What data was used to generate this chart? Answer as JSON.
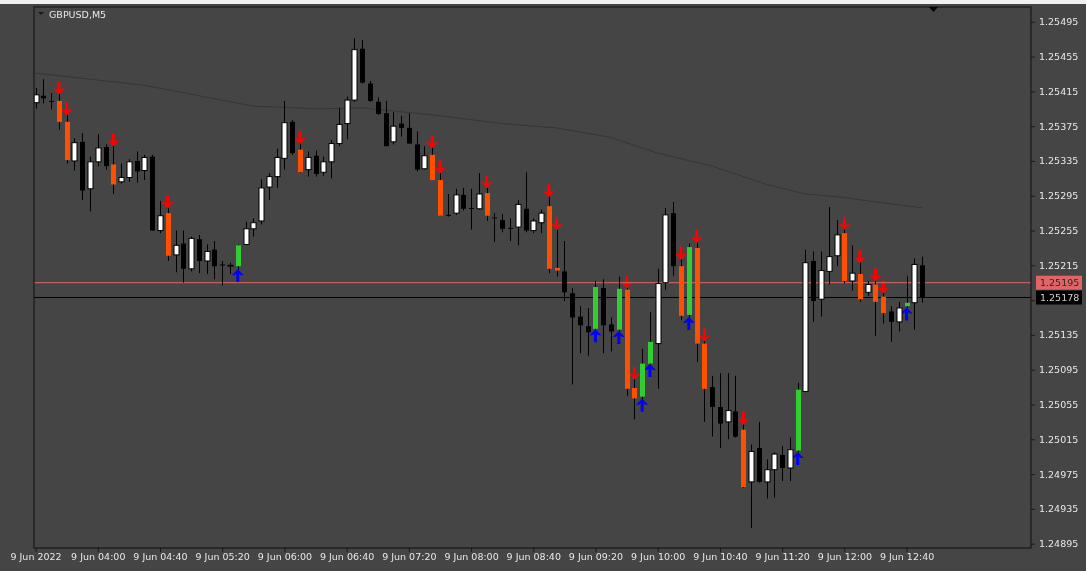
{
  "chart_data": {
    "type": "candlestick",
    "title": "GBPUSD,M5",
    "x": [
      "2022-06-09T03:20",
      "2022-06-09T03:25",
      "2022-06-09T03:30",
      "2022-06-09T03:35",
      "2022-06-09T03:40",
      "2022-06-09T03:45",
      "2022-06-09T03:50",
      "2022-06-09T03:55",
      "2022-06-09T04:00",
      "2022-06-09T04:05",
      "2022-06-09T04:10",
      "2022-06-09T04:15",
      "2022-06-09T04:20",
      "2022-06-09T04:25",
      "2022-06-09T04:30",
      "2022-06-09T04:35",
      "2022-06-09T04:40",
      "2022-06-09T04:45",
      "2022-06-09T04:50",
      "2022-06-09T04:55",
      "2022-06-09T05:00",
      "2022-06-09T05:05",
      "2022-06-09T05:10",
      "2022-06-09T05:15",
      "2022-06-09T05:20",
      "2022-06-09T05:25",
      "2022-06-09T05:30",
      "2022-06-09T05:35",
      "2022-06-09T05:40",
      "2022-06-09T05:45",
      "2022-06-09T05:50",
      "2022-06-09T05:55",
      "2022-06-09T06:00",
      "2022-06-09T06:05",
      "2022-06-09T06:10",
      "2022-06-09T06:15",
      "2022-06-09T06:20",
      "2022-06-09T06:25",
      "2022-06-09T06:30",
      "2022-06-09T06:35",
      "2022-06-09T06:40",
      "2022-06-09T06:45",
      "2022-06-09T06:50",
      "2022-06-09T06:55",
      "2022-06-09T07:00",
      "2022-06-09T07:05",
      "2022-06-09T07:10",
      "2022-06-09T07:15",
      "2022-06-09T07:20",
      "2022-06-09T07:25",
      "2022-06-09T07:30",
      "2022-06-09T07:35",
      "2022-06-09T07:40",
      "2022-06-09T07:45",
      "2022-06-09T07:50",
      "2022-06-09T07:55",
      "2022-06-09T08:00",
      "2022-06-09T08:05",
      "2022-06-09T08:10",
      "2022-06-09T08:15",
      "2022-06-09T08:20",
      "2022-06-09T08:25",
      "2022-06-09T08:30",
      "2022-06-09T08:35",
      "2022-06-09T08:40",
      "2022-06-09T08:45",
      "2022-06-09T08:50",
      "2022-06-09T08:55",
      "2022-06-09T09:00",
      "2022-06-09T09:05",
      "2022-06-09T09:10",
      "2022-06-09T09:15",
      "2022-06-09T09:20",
      "2022-06-09T09:25",
      "2022-06-09T09:30",
      "2022-06-09T09:35",
      "2022-06-09T09:40",
      "2022-06-09T09:45",
      "2022-06-09T09:50",
      "2022-06-09T09:55",
      "2022-06-09T10:00",
      "2022-06-09T10:05",
      "2022-06-09T10:10",
      "2022-06-09T10:15",
      "2022-06-09T10:20",
      "2022-06-09T10:25",
      "2022-06-09T10:30",
      "2022-06-09T10:35",
      "2022-06-09T10:40",
      "2022-06-09T10:45",
      "2022-06-09T10:50",
      "2022-06-09T10:55",
      "2022-06-09T11:00",
      "2022-06-09T11:05",
      "2022-06-09T11:10",
      "2022-06-09T11:15",
      "2022-06-09T11:20",
      "2022-06-09T11:25",
      "2022-06-09T11:30",
      "2022-06-09T11:35",
      "2022-06-09T11:40",
      "2022-06-09T11:45",
      "2022-06-09T11:50",
      "2022-06-09T11:55",
      "2022-06-09T12:00",
      "2022-06-09T12:05",
      "2022-06-09T12:10",
      "2022-06-09T12:15",
      "2022-06-09T12:20",
      "2022-06-09T12:25",
      "2022-06-09T12:30",
      "2022-06-09T12:35",
      "2022-06-09T12:40",
      "2022-06-09T12:45",
      "2022-06-09T12:50"
    ],
    "ohlc": [
      [
        1.25402,
        1.25419,
        1.25395,
        1.25411
      ],
      [
        1.2541,
        1.25429,
        1.25401,
        1.25407
      ],
      [
        1.25404,
        1.25413,
        1.25394,
        1.25403
      ],
      [
        1.25404,
        1.25412,
        1.25371,
        1.2538
      ],
      [
        1.2538,
        1.25388,
        1.25332,
        1.25336
      ],
      [
        1.25335,
        1.25361,
        1.25324,
        1.25356
      ],
      [
        1.25357,
        1.25367,
        1.2529,
        1.25301
      ],
      [
        1.25303,
        1.2534,
        1.25277,
        1.25334
      ],
      [
        1.25334,
        1.25366,
        1.25329,
        1.2535
      ],
      [
        1.25351,
        1.25354,
        1.25325,
        1.25329
      ],
      [
        1.25331,
        1.25352,
        1.25297,
        1.25308
      ],
      [
        1.25311,
        1.25332,
        1.25309,
        1.25316
      ],
      [
        1.25316,
        1.25337,
        1.25311,
        1.25334
      ],
      [
        1.25335,
        1.25346,
        1.2531,
        1.25323
      ],
      [
        1.25324,
        1.25342,
        1.25313,
        1.25339
      ],
      [
        1.2534,
        1.25342,
        1.25255,
        1.25255
      ],
      [
        1.25255,
        1.25289,
        1.25252,
        1.25272
      ],
      [
        1.25275,
        1.25281,
        1.2522,
        1.25226
      ],
      [
        1.25227,
        1.25255,
        1.25207,
        1.25238
      ],
      [
        1.2524,
        1.25255,
        1.25195,
        1.25211
      ],
      [
        1.25211,
        1.25248,
        1.25208,
        1.25246
      ],
      [
        1.25245,
        1.2525,
        1.25206,
        1.2522
      ],
      [
        1.2522,
        1.25239,
        1.25205,
        1.25231
      ],
      [
        1.25233,
        1.25243,
        1.25199,
        1.25214
      ],
      [
        1.25216,
        1.2522,
        1.25192,
        1.25215
      ],
      [
        1.25214,
        1.25218,
        1.25205,
        1.25215
      ],
      [
        1.25214,
        1.25239,
        1.2521,
        1.25238
      ],
      [
        1.25239,
        1.25265,
        1.25238,
        1.25257
      ],
      [
        1.25257,
        1.25269,
        1.25248,
        1.25264
      ],
      [
        1.25266,
        1.25314,
        1.25262,
        1.25304
      ],
      [
        1.25305,
        1.25321,
        1.2529,
        1.25317
      ],
      [
        1.25317,
        1.25349,
        1.25304,
        1.25339
      ],
      [
        1.25338,
        1.25404,
        1.25325,
        1.25379
      ],
      [
        1.2538,
        1.25382,
        1.25342,
        1.25344
      ],
      [
        1.25348,
        1.25355,
        1.25321,
        1.25322
      ],
      [
        1.25325,
        1.25346,
        1.25317,
        1.25339
      ],
      [
        1.25341,
        1.25347,
        1.25317,
        1.2532
      ],
      [
        1.25322,
        1.2534,
        1.25318,
        1.25334
      ],
      [
        1.25334,
        1.25359,
        1.25315,
        1.25355
      ],
      [
        1.25355,
        1.25396,
        1.25352,
        1.25377
      ],
      [
        1.25378,
        1.25409,
        1.2536,
        1.25405
      ],
      [
        1.25405,
        1.25476,
        1.25403,
        1.25463
      ],
      [
        1.25464,
        1.25474,
        1.25424,
        1.25425
      ],
      [
        1.25424,
        1.25427,
        1.25403,
        1.25404
      ],
      [
        1.25403,
        1.25408,
        1.25388,
        1.25389
      ],
      [
        1.2539,
        1.25404,
        1.25352,
        1.25352
      ],
      [
        1.25357,
        1.25391,
        1.25354,
        1.25375
      ],
      [
        1.25378,
        1.25387,
        1.25363,
        1.25373
      ],
      [
        1.25373,
        1.2539,
        1.25355,
        1.25355
      ],
      [
        1.25354,
        1.25369,
        1.25323,
        1.25325
      ],
      [
        1.25326,
        1.25352,
        1.25325,
        1.25341
      ],
      [
        1.25342,
        1.2535,
        1.25313,
        1.25313
      ],
      [
        1.25313,
        1.25321,
        1.25272,
        1.25272
      ],
      [
        1.25273,
        1.25297,
        1.25271,
        1.25272
      ],
      [
        1.25275,
        1.25303,
        1.25273,
        1.25296
      ],
      [
        1.25296,
        1.25304,
        1.25278,
        1.2528
      ],
      [
        1.25281,
        1.25303,
        1.25256,
        1.2528
      ],
      [
        1.2528,
        1.25321,
        1.25279,
        1.25297
      ],
      [
        1.25298,
        1.25304,
        1.25266,
        1.25272
      ],
      [
        1.2527,
        1.25275,
        1.25242,
        1.25269
      ],
      [
        1.25267,
        1.25274,
        1.25253,
        1.25257
      ],
      [
        1.25258,
        1.25269,
        1.25243,
        1.25257
      ],
      [
        1.25259,
        1.2529,
        1.25238,
        1.25285
      ],
      [
        1.2528,
        1.25322,
        1.25253,
        1.25255
      ],
      [
        1.25255,
        1.25269,
        1.25252,
        1.25266
      ],
      [
        1.25264,
        1.25279,
        1.25252,
        1.25275
      ],
      [
        1.25283,
        1.25294,
        1.25206,
        1.25211
      ],
      [
        1.25212,
        1.25256,
        1.25202,
        1.25209
      ],
      [
        1.25208,
        1.25243,
        1.25174,
        1.25184
      ],
      [
        1.25183,
        1.25189,
        1.25078,
        1.25155
      ],
      [
        1.25156,
        1.25168,
        1.25114,
        1.25146
      ],
      [
        1.25145,
        1.25166,
        1.25111,
        1.25138
      ],
      [
        1.25142,
        1.25197,
        1.25141,
        1.2519
      ],
      [
        1.25189,
        1.25199,
        1.25114,
        1.25146
      ],
      [
        1.25147,
        1.25155,
        1.25116,
        1.25139
      ],
      [
        1.25141,
        1.25202,
        1.25139,
        1.25188
      ],
      [
        1.25187,
        1.25189,
        1.25065,
        1.25073
      ],
      [
        1.25074,
        1.25084,
        1.25038,
        1.25062
      ],
      [
        1.25064,
        1.25119,
        1.25061,
        1.25102
      ],
      [
        1.25102,
        1.25161,
        1.25101,
        1.25127
      ],
      [
        1.25125,
        1.25211,
        1.25073,
        1.25194
      ],
      [
        1.25195,
        1.25281,
        1.25187,
        1.25273
      ],
      [
        1.25275,
        1.25288,
        1.25203,
        1.25214
      ],
      [
        1.25214,
        1.25222,
        1.25152,
        1.25157
      ],
      [
        1.25158,
        1.2524,
        1.25155,
        1.25236
      ],
      [
        1.25235,
        1.25241,
        1.25104,
        1.25125
      ],
      [
        1.25125,
        1.25128,
        1.25035,
        1.25073
      ],
      [
        1.25075,
        1.25088,
        1.25018,
        1.25052
      ],
      [
        1.25052,
        1.25091,
        1.25005,
        1.25033
      ],
      [
        1.25035,
        1.25091,
        1.25015,
        1.25048
      ],
      [
        1.25047,
        1.25088,
        1.25017,
        1.25018
      ],
      [
        1.25026,
        1.25032,
        1.24959,
        1.2496
      ],
      [
        1.24966,
        1.25009,
        1.24913,
        1.25001
      ],
      [
        1.25005,
        1.25035,
        1.24965,
        1.24966
      ],
      [
        1.24966,
        1.24992,
        1.24947,
        1.2498
      ],
      [
        1.2498,
        1.25,
        1.24948,
        1.24998
      ],
      [
        1.24997,
        1.25007,
        1.24967,
        1.24982
      ],
      [
        1.24982,
        1.25017,
        1.24967,
        1.25003
      ],
      [
        1.25002,
        1.2508,
        1.25,
        1.25072
      ],
      [
        1.2507,
        1.25233,
        1.25069,
        1.25218
      ],
      [
        1.2522,
        1.25231,
        1.2515,
        1.25174
      ],
      [
        1.25176,
        1.25231,
        1.25156,
        1.25209
      ],
      [
        1.25208,
        1.25282,
        1.25193,
        1.25225
      ],
      [
        1.25226,
        1.25267,
        1.25214,
        1.2525
      ],
      [
        1.25252,
        1.25256,
        1.25194,
        1.25197
      ],
      [
        1.25197,
        1.25238,
        1.25186,
        1.25206
      ],
      [
        1.25205,
        1.25218,
        1.25173,
        1.25176
      ],
      [
        1.25184,
        1.25197,
        1.2518,
        1.25193
      ],
      [
        1.25193,
        1.25197,
        1.25134,
        1.25173
      ],
      [
        1.25179,
        1.25183,
        1.25148,
        1.2516
      ],
      [
        1.25162,
        1.25168,
        1.25127,
        1.2515
      ],
      [
        1.2515,
        1.25173,
        1.25139,
        1.25166
      ],
      [
        1.25168,
        1.25203,
        1.25166,
        1.25172
      ],
      [
        1.25172,
        1.25223,
        1.25141,
        1.25216
      ],
      [
        1.25215,
        1.25225,
        1.25172,
        1.25178
      ]
    ],
    "colors": [
      "#ffffff",
      "#000000",
      "#000000",
      "#ff5000",
      "#ff5000",
      "#ffffff",
      "#000000",
      "#ffffff",
      "#ffffff",
      "#000000",
      "#ff5000",
      "#ffffff",
      "#ffffff",
      "#000000",
      "#ffffff",
      "#000000",
      "#ffffff",
      "#ff5000",
      "#ffffff",
      "#000000",
      "#ffffff",
      "#000000",
      "#ffffff",
      "#000000",
      "#000000",
      "#ffffff",
      "#32cd32",
      "#ffffff",
      "#ffffff",
      "#ffffff",
      "#ffffff",
      "#ffffff",
      "#ffffff",
      "#000000",
      "#ff5000",
      "#ffffff",
      "#000000",
      "#ffffff",
      "#ffffff",
      "#ffffff",
      "#ffffff",
      "#ffffff",
      "#000000",
      "#000000",
      "#000000",
      "#000000",
      "#ffffff",
      "#000000",
      "#000000",
      "#000000",
      "#ffffff",
      "#ff5000",
      "#ff5000",
      "#000000",
      "#ffffff",
      "#000000",
      "#000000",
      "#ffffff",
      "#ff5000",
      "#000000",
      "#000000",
      "#000000",
      "#ffffff",
      "#000000",
      "#ffffff",
      "#ffffff",
      "#ff5000",
      "#ff5000",
      "#000000",
      "#000000",
      "#000000",
      "#000000",
      "#32cd32",
      "#000000",
      "#000000",
      "#32cd32",
      "#ff5000",
      "#ff5000",
      "#32cd32",
      "#32cd32",
      "#ffffff",
      "#ffffff",
      "#000000",
      "#ff5000",
      "#32cd32",
      "#ff5000",
      "#ff5000",
      "#000000",
      "#000000",
      "#ffffff",
      "#000000",
      "#ff5000",
      "#ffffff",
      "#000000",
      "#ffffff",
      "#ffffff",
      "#000000",
      "#ffffff",
      "#32cd32",
      "#ffffff",
      "#000000",
      "#ffffff",
      "#ffffff",
      "#ffffff",
      "#ff5000",
      "#ffffff",
      "#ff5000",
      "#ffffff",
      "#ff5000",
      "#ff5000",
      "#000000",
      "#ffffff",
      "#32cd32",
      "#ffffff",
      "#000000"
    ],
    "series": [
      {
        "type": "line",
        "color": "#363636",
        "x": [
          "2022-06-09T03:20",
          "2022-06-09T04:30",
          "2022-06-09T05:40",
          "2022-06-09T06:20",
          "2022-06-09T06:50",
          "2022-06-09T07:35",
          "2022-06-09T08:20",
          "2022-06-09T08:55",
          "2022-06-09T09:30",
          "2022-06-09T10:00",
          "2022-06-09T10:35",
          "2022-06-09T11:10",
          "2022-06-09T11:35",
          "2022-06-09T11:55",
          "2022-06-09T12:20",
          "2022-06-09T12:50"
        ],
        "values": [
          1.25436,
          1.25422,
          1.25398,
          1.25395,
          1.25396,
          1.25388,
          1.25378,
          1.25373,
          1.25362,
          1.25344,
          1.25329,
          1.25308,
          1.25297,
          1.25294,
          1.25288,
          1.25281
        ]
      },
      {
        "type": "scatter",
        "color": "#ff0000",
        "x": [
          "2022-06-09T03:35",
          "2022-06-09T03:40",
          "2022-06-09T04:10",
          "2022-06-09T04:45",
          "2022-06-09T06:10",
          "2022-06-09T07:35",
          "2022-06-09T07:40",
          "2022-06-09T08:10",
          "2022-06-09T08:50",
          "2022-06-09T08:55",
          "2022-06-09T09:40",
          "2022-06-09T09:45",
          "2022-06-09T10:15",
          "2022-06-09T10:25",
          "2022-06-09T10:30",
          "2022-06-09T10:55",
          "2022-06-09T12:00",
          "2022-06-09T12:10",
          "2022-06-09T12:20",
          "2022-06-09T12:25"
        ],
        "values": [
          1.25419,
          1.25395,
          1.25359,
          1.25288,
          1.25362,
          1.25357,
          1.25328,
          1.25311,
          1.25301,
          1.25263,
          1.25196,
          1.25091,
          1.25229,
          1.25248,
          1.25135,
          1.25039,
          1.25263,
          1.25225,
          1.25204,
          1.2519
        ]
      },
      {
        "type": "scatter",
        "color": "#0000ff",
        "x": [
          "2022-06-09T05:30",
          "2022-06-09T09:20",
          "2022-06-09T09:35",
          "2022-06-09T09:50",
          "2022-06-09T09:55",
          "2022-06-09T10:20",
          "2022-06-09T11:30",
          "2022-06-09T12:40"
        ],
        "values": [
          1.25203,
          1.25134,
          1.25132,
          1.25054,
          1.25094,
          1.25148,
          1.24993,
          1.25159
        ]
      }
    ],
    "ref_lines": [
      {
        "axis": "y",
        "value": 1.25195,
        "label": "1.25195",
        "color": "#e06666"
      },
      {
        "axis": "y",
        "value": 1.25178,
        "label": "1.25178",
        "color": "#000000"
      }
    ],
    "xlim": [
      "2022-06-09T03:19",
      "2022-06-09T14:00"
    ],
    "xticks": [
      {
        "value": "2022-06-09T03:20",
        "label": "9 Jun 2022"
      },
      {
        "value": "2022-06-09T04:00",
        "label": "9 Jun 04:00"
      },
      {
        "value": "2022-06-09T04:40",
        "label": "9 Jun 04:40"
      },
      {
        "value": "2022-06-09T05:20",
        "label": "9 Jun 05:20"
      },
      {
        "value": "2022-06-09T06:00",
        "label": "9 Jun 06:00"
      },
      {
        "value": "2022-06-09T06:40",
        "label": "9 Jun 06:40"
      },
      {
        "value": "2022-06-09T07:20",
        "label": "9 Jun 07:20"
      },
      {
        "value": "2022-06-09T08:00",
        "label": "9 Jun 08:00"
      },
      {
        "value": "2022-06-09T08:40",
        "label": "9 Jun 08:40"
      },
      {
        "value": "2022-06-09T09:20",
        "label": "9 Jun 09:20"
      },
      {
        "value": "2022-06-09T10:00",
        "label": "9 Jun 10:00"
      },
      {
        "value": "2022-06-09T10:40",
        "label": "9 Jun 10:40"
      },
      {
        "value": "2022-06-09T11:20",
        "label": "9 Jun 11:20"
      },
      {
        "value": "2022-06-09T12:00",
        "label": "9 Jun 12:00"
      },
      {
        "value": "2022-06-09T12:40",
        "label": "9 Jun 12:40"
      }
    ],
    "ylim": [
      1.2489,
      1.25512
    ],
    "yticks": [
      1.25495,
      1.25455,
      1.25415,
      1.25375,
      1.25335,
      1.25295,
      1.25255,
      1.25215,
      {
        "value": 1.25175,
        "label": null
      },
      1.25135,
      1.25095,
      1.25055,
      1.25015,
      1.24975,
      1.24935,
      1.24895
    ]
  }
}
